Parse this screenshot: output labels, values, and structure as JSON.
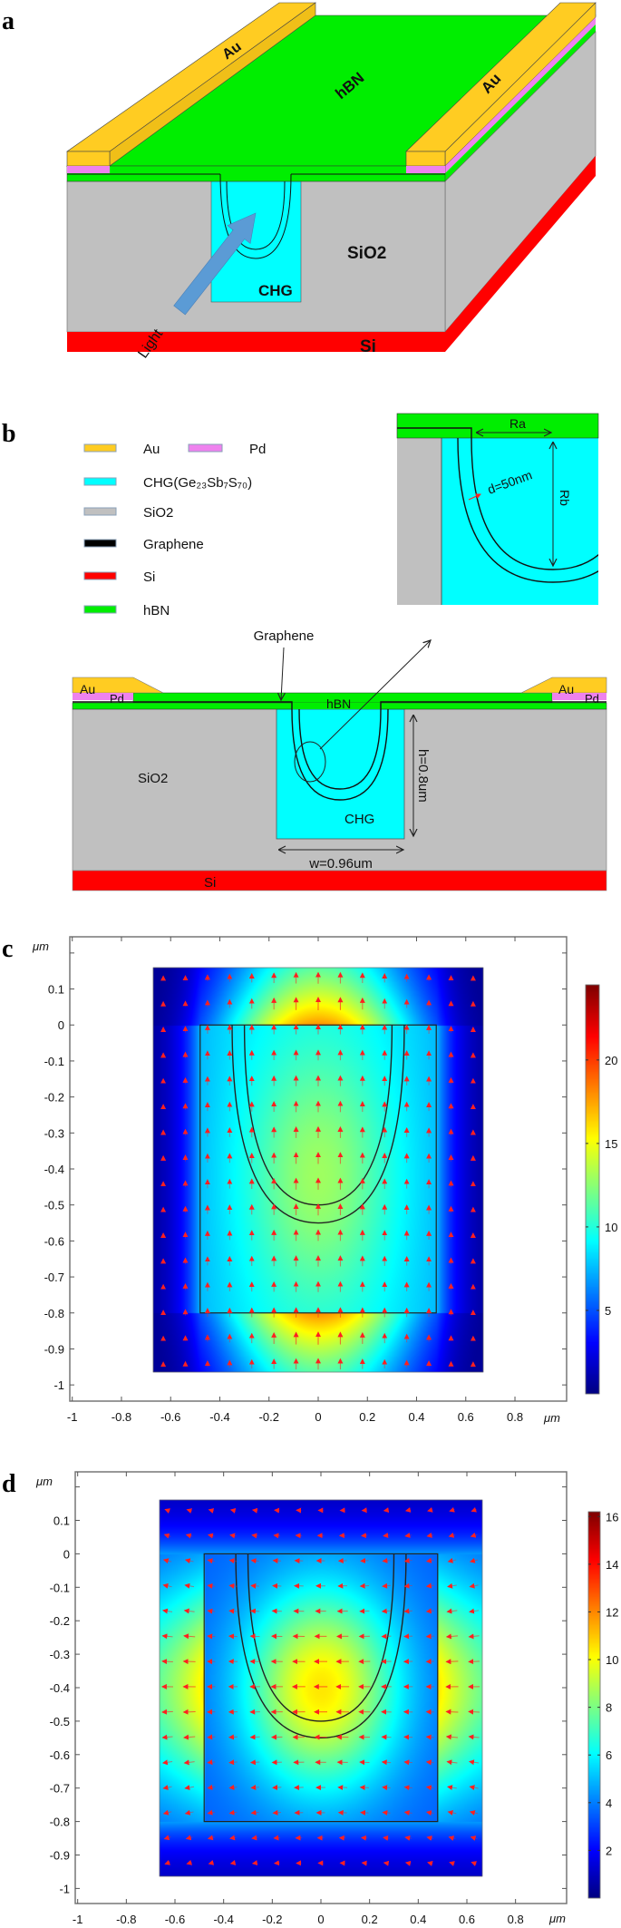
{
  "panel_a": {
    "label": "a",
    "au_left": "Au",
    "au_right": "Au",
    "hbn": "hBN",
    "sio2": "SiO2",
    "chg": "CHG",
    "si": "Si",
    "light": "Light"
  },
  "panel_b": {
    "label": "b",
    "legend": [
      {
        "name": "Au",
        "color": "#FFCC22"
      },
      {
        "name": "Pd",
        "color": "#EE82EE"
      },
      {
        "name": "CHG(Ge₂₃Sb₇S₇₀)",
        "color": "#00FFFF"
      },
      {
        "name": "SiO2",
        "color": "#C0C0C0"
      },
      {
        "name": "Graphene",
        "color": "#000000"
      },
      {
        "name": "Si",
        "color": "#FF0000"
      },
      {
        "name": "hBN",
        "color": "#00EE00"
      }
    ],
    "inset": {
      "ra": "Ra",
      "rb": "Rb",
      "d": "d=50nm"
    },
    "section": {
      "au_left": "Au",
      "pd_left": "Pd",
      "au_right": "Au",
      "pd_right": "Pd",
      "hbn": "hBN",
      "sio2": "SiO2",
      "chg": "CHG",
      "si": "Si",
      "graphene": "Graphene",
      "h": "h=0.8um",
      "w": "w=0.96um"
    }
  },
  "chart_data": [
    {
      "label": "c",
      "type": "heatmap",
      "colormap": "jet",
      "x_unit": "μm",
      "y_unit": "μm",
      "xlim": [
        -1.01,
        1.01
      ],
      "ylim": [
        -1.045,
        0.245
      ],
      "x_ticks": [
        "-1",
        "-0.8",
        "-0.6",
        "-0.4",
        "-0.2",
        "0",
        "0.2",
        "0.4",
        "0.6",
        "0.8"
      ],
      "y_ticks": [
        "0.1",
        "0",
        "-0.1",
        "-0.2",
        "-0.3",
        "-0.4",
        "-0.5",
        "-0.6",
        "-0.7",
        "-0.8",
        "-0.9",
        "-1"
      ],
      "colorbar": {
        "min": 0,
        "max": 24.5,
        "ticks": [
          "5",
          "10",
          "15",
          "20"
        ]
      },
      "field_region": {
        "x": [
          -0.67,
          0.67
        ],
        "y": [
          -0.965,
          0.16
        ]
      },
      "chg_box": {
        "x": [
          -0.48,
          0.48
        ],
        "y": [
          -0.8,
          0
        ]
      },
      "graphene_curves": [
        {
          "half_width": 0.35,
          "bottom": -0.55
        },
        {
          "half_width": 0.3,
          "bottom": -0.5
        }
      ],
      "arrow_direction": "up",
      "arrow_color": "#FF2020"
    },
    {
      "label": "d",
      "type": "heatmap",
      "colormap": "jet",
      "x_unit": "μm",
      "y_unit": "μm",
      "xlim": [
        -1.01,
        1.01
      ],
      "ylim": [
        -1.045,
        0.245
      ],
      "x_ticks": [
        "-1",
        "-0.8",
        "-0.6",
        "-0.4",
        "-0.2",
        "0",
        "0.2",
        "0.4",
        "0.6",
        "0.8"
      ],
      "y_ticks": [
        "0.1",
        "0",
        "-0.1",
        "-0.2",
        "-0.3",
        "-0.4",
        "-0.5",
        "-0.6",
        "-0.7",
        "-0.8",
        "-0.9",
        "-1"
      ],
      "colorbar": {
        "min": 0,
        "max": 16.2,
        "ticks": [
          "2",
          "4",
          "6",
          "8",
          "10",
          "12",
          "14",
          "16"
        ]
      },
      "field_region": {
        "x": [
          -0.665,
          0.665
        ],
        "y": [
          -0.964,
          0.16
        ]
      },
      "chg_box": {
        "x": [
          -0.48,
          0.48
        ],
        "y": [
          -0.8,
          0
        ]
      },
      "graphene_curves": [
        {
          "half_width": 0.35,
          "bottom": -0.55
        },
        {
          "half_width": 0.3,
          "bottom": -0.5
        }
      ],
      "arrow_direction": "left",
      "arrow_color": "#FF2020"
    }
  ]
}
